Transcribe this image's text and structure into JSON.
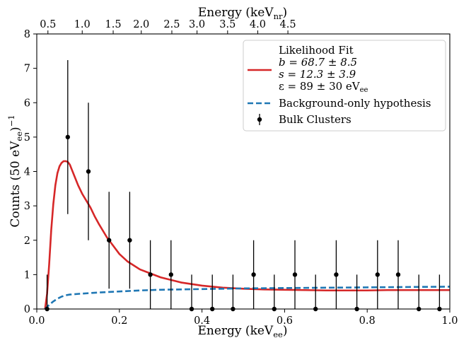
{
  "chart_data": {
    "type": "line",
    "xlabel": "Energy (keV",
    "xlabel_sub": "ee",
    "xlabel_tail": ")",
    "ylabel": "Counts (50 eV",
    "ylabel_sub": "ee",
    "ylabel_tail": ")",
    "ylabel_sup": "−1",
    "top_xlabel": "Energy (keV",
    "top_xlabel_sub": "nr",
    "top_xlabel_tail": ")",
    "xlim": [
      0.0,
      1.0
    ],
    "ylim": [
      0,
      8
    ],
    "x_ticks": [
      "0.0",
      "0.2",
      "0.4",
      "0.6",
      "0.8",
      "1.0"
    ],
    "y_ticks": [
      "0",
      "1",
      "2",
      "3",
      "4",
      "5",
      "6",
      "7",
      "8"
    ],
    "top_ticks": [
      {
        "label": "0.5",
        "x": 0.027
      },
      {
        "label": "1.0",
        "x": 0.11
      },
      {
        "label": "1.5",
        "x": 0.185
      },
      {
        "label": "2.0",
        "x": 0.253
      },
      {
        "label": "2.5",
        "x": 0.327
      },
      {
        "label": "3.0",
        "x": 0.388
      },
      {
        "label": "3.5",
        "x": 0.462
      },
      {
        "label": "4.0",
        "x": 0.535
      },
      {
        "label": "4.5",
        "x": 0.608
      }
    ],
    "grid": false,
    "legend_position": "top-right",
    "legend": {
      "fit_label": "Likelihood Fit",
      "fit_lines": [
        "b = 68.7 ± 8.5",
        "s = 12.3 ± 3.9",
        "ε = 89 ± 30 eV"
      ],
      "fit_line3_sub": "ee",
      "bkg_label": "Background-only hypothesis",
      "data_label": "Bulk Clusters"
    },
    "series": [
      {
        "name": "Likelihood Fit",
        "style": "line",
        "color": "#d62728",
        "x": [
          0.02,
          0.025,
          0.03,
          0.035,
          0.04,
          0.045,
          0.05,
          0.055,
          0.06,
          0.065,
          0.07,
          0.075,
          0.08,
          0.085,
          0.09,
          0.1,
          0.11,
          0.12,
          0.13,
          0.14,
          0.15,
          0.16,
          0.17,
          0.18,
          0.2,
          0.22,
          0.25,
          0.3,
          0.35,
          0.4,
          0.45,
          0.5,
          0.55,
          0.6,
          0.65,
          0.7,
          0.75,
          0.8,
          0.85,
          0.9,
          0.95,
          1.0
        ],
        "y": [
          0.0,
          0.45,
          1.3,
          2.3,
          3.05,
          3.6,
          3.95,
          4.15,
          4.25,
          4.3,
          4.3,
          4.28,
          4.2,
          4.05,
          3.9,
          3.6,
          3.35,
          3.15,
          2.95,
          2.7,
          2.48,
          2.28,
          2.08,
          1.92,
          1.6,
          1.38,
          1.15,
          0.92,
          0.77,
          0.68,
          0.62,
          0.59,
          0.57,
          0.56,
          0.55,
          0.54,
          0.54,
          0.54,
          0.55,
          0.55,
          0.55,
          0.55
        ]
      },
      {
        "name": "Background-only hypothesis",
        "style": "dashed",
        "color": "#1f77b4",
        "x": [
          0.02,
          0.03,
          0.04,
          0.05,
          0.06,
          0.07,
          0.08,
          0.09,
          0.1,
          0.15,
          0.2,
          0.25,
          0.3,
          0.4,
          0.5,
          0.6,
          0.7,
          0.8,
          0.9,
          1.0
        ],
        "y": [
          0.0,
          0.12,
          0.22,
          0.3,
          0.36,
          0.4,
          0.42,
          0.43,
          0.44,
          0.48,
          0.51,
          0.54,
          0.56,
          0.58,
          0.6,
          0.61,
          0.62,
          0.63,
          0.64,
          0.65
        ]
      },
      {
        "name": "Bulk Clusters",
        "style": "errorbar",
        "color": "#000000",
        "x": [
          0.025,
          0.075,
          0.125,
          0.175,
          0.225,
          0.275,
          0.325,
          0.375,
          0.425,
          0.475,
          0.525,
          0.575,
          0.625,
          0.675,
          0.725,
          0.775,
          0.825,
          0.875,
          0.925,
          0.975
        ],
        "y": [
          0,
          5,
          4,
          2,
          2,
          1,
          1,
          0,
          0,
          0,
          1,
          0,
          1,
          0,
          1,
          0,
          1,
          1,
          0,
          0
        ],
        "yerr_low": [
          0,
          2.24,
          2.0,
          1.41,
          1.41,
          1.0,
          1.0,
          0,
          0,
          0,
          1.0,
          0,
          1.0,
          0,
          1.0,
          0,
          1.0,
          1.0,
          0,
          0
        ],
        "yerr_high": [
          1.0,
          2.24,
          2.0,
          1.41,
          1.41,
          1.0,
          1.0,
          1.0,
          1.0,
          1.0,
          1.0,
          1.0,
          1.0,
          1.0,
          1.0,
          1.0,
          1.0,
          1.0,
          1.0,
          1.0
        ]
      }
    ]
  }
}
